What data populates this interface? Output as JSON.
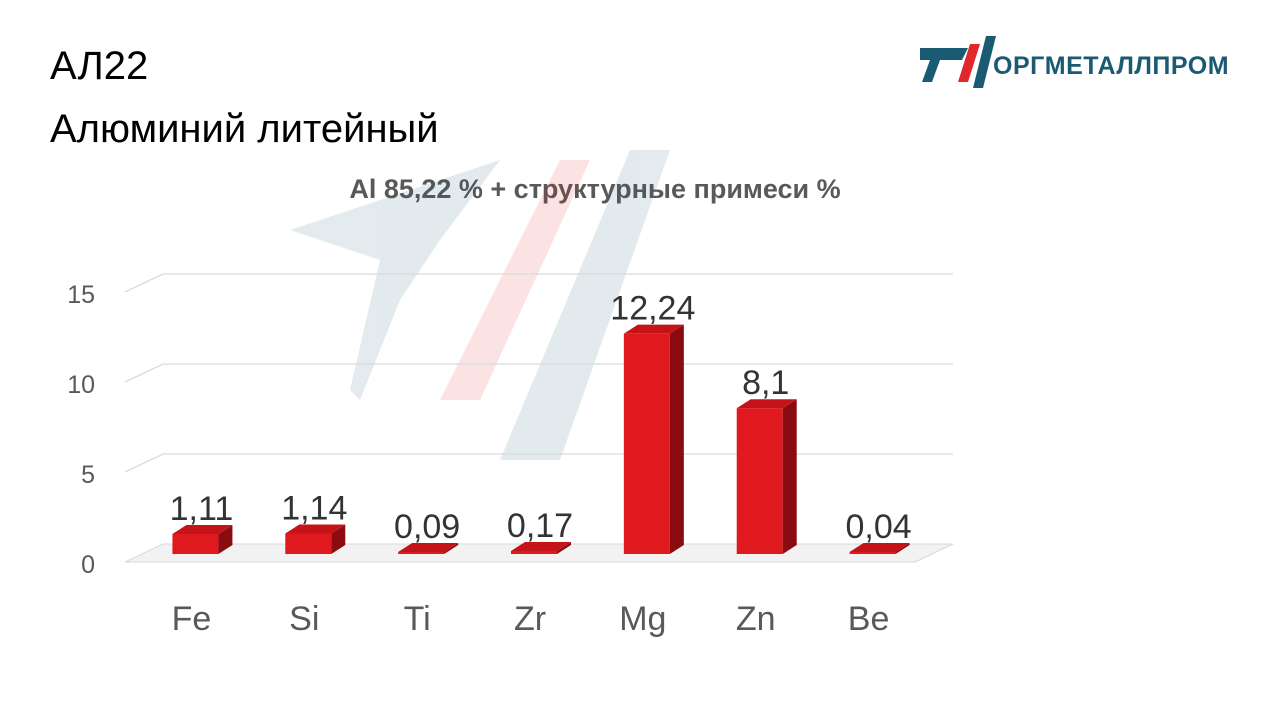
{
  "header": {
    "title_line1": "АЛ22",
    "title_line2": "Алюминий литейный"
  },
  "logo": {
    "text": "ОРГМЕТАЛЛПРОМ",
    "icon": "orgmetallprom-logo-icon"
  },
  "colors": {
    "bar": "#e0191f",
    "bar_dark": "#8a0c10",
    "bar_top": "#c41419",
    "grid": "#d9d9d9",
    "logo": "#1a5a73",
    "logo_red": "#e1262c"
  },
  "chart_data": {
    "type": "bar",
    "title": "Al 85,22 % + структурные примеси %",
    "categories": [
      "Fe",
      "Si",
      "Ti",
      "Zr",
      "Mg",
      "Zn",
      "Be"
    ],
    "values": [
      1.11,
      1.14,
      0.09,
      0.17,
      12.24,
      8.1,
      0.04
    ],
    "value_labels": [
      "1,11",
      "1,14",
      "0,09",
      "0,17",
      "12,24",
      "8,1",
      "0,04"
    ],
    "yticks": [
      "0",
      "5",
      "10",
      "15"
    ],
    "ylim": [
      0,
      15
    ],
    "grid": true,
    "legend": "none",
    "xlabel": "",
    "ylabel": ""
  }
}
